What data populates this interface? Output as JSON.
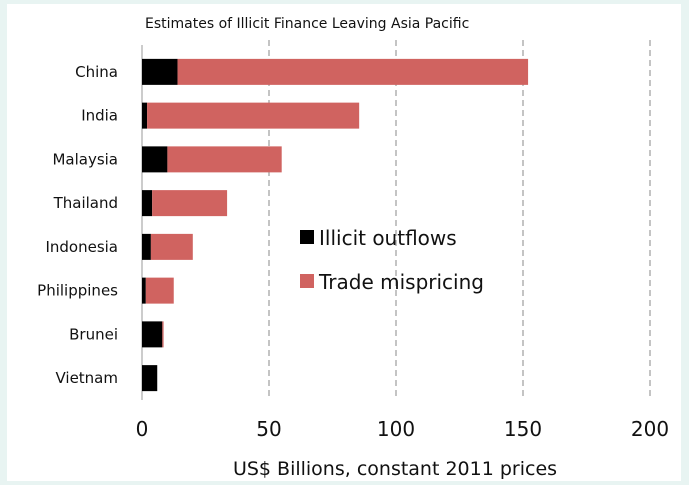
{
  "chart_data": {
    "type": "bar",
    "stacked": true,
    "orientation": "horizontal",
    "title": "Estimates of Illicit Finance Leaving Asia Pacific",
    "xlabel": "US$ Billions, constant 2011 prices",
    "ylabel": "",
    "xlim": [
      0,
      200
    ],
    "xticks": [
      0,
      50,
      100,
      150,
      200
    ],
    "grid": "vertical dashed",
    "legend_position": "center-right",
    "categories": [
      "China",
      "India",
      "Malaysia",
      "Thailand",
      "Indonesia",
      "Philippines",
      "Brunei",
      "Vietnam"
    ],
    "series": [
      {
        "name": "Illicit outflows",
        "color": "#000000",
        "values": [
          14,
          2,
          10,
          4,
          3.5,
          1.5,
          8,
          6
        ]
      },
      {
        "name": "Trade mispricing",
        "color": "#d06360",
        "values": [
          138,
          83.5,
          45,
          29.5,
          16.5,
          11,
          0.5,
          0
        ]
      }
    ]
  }
}
